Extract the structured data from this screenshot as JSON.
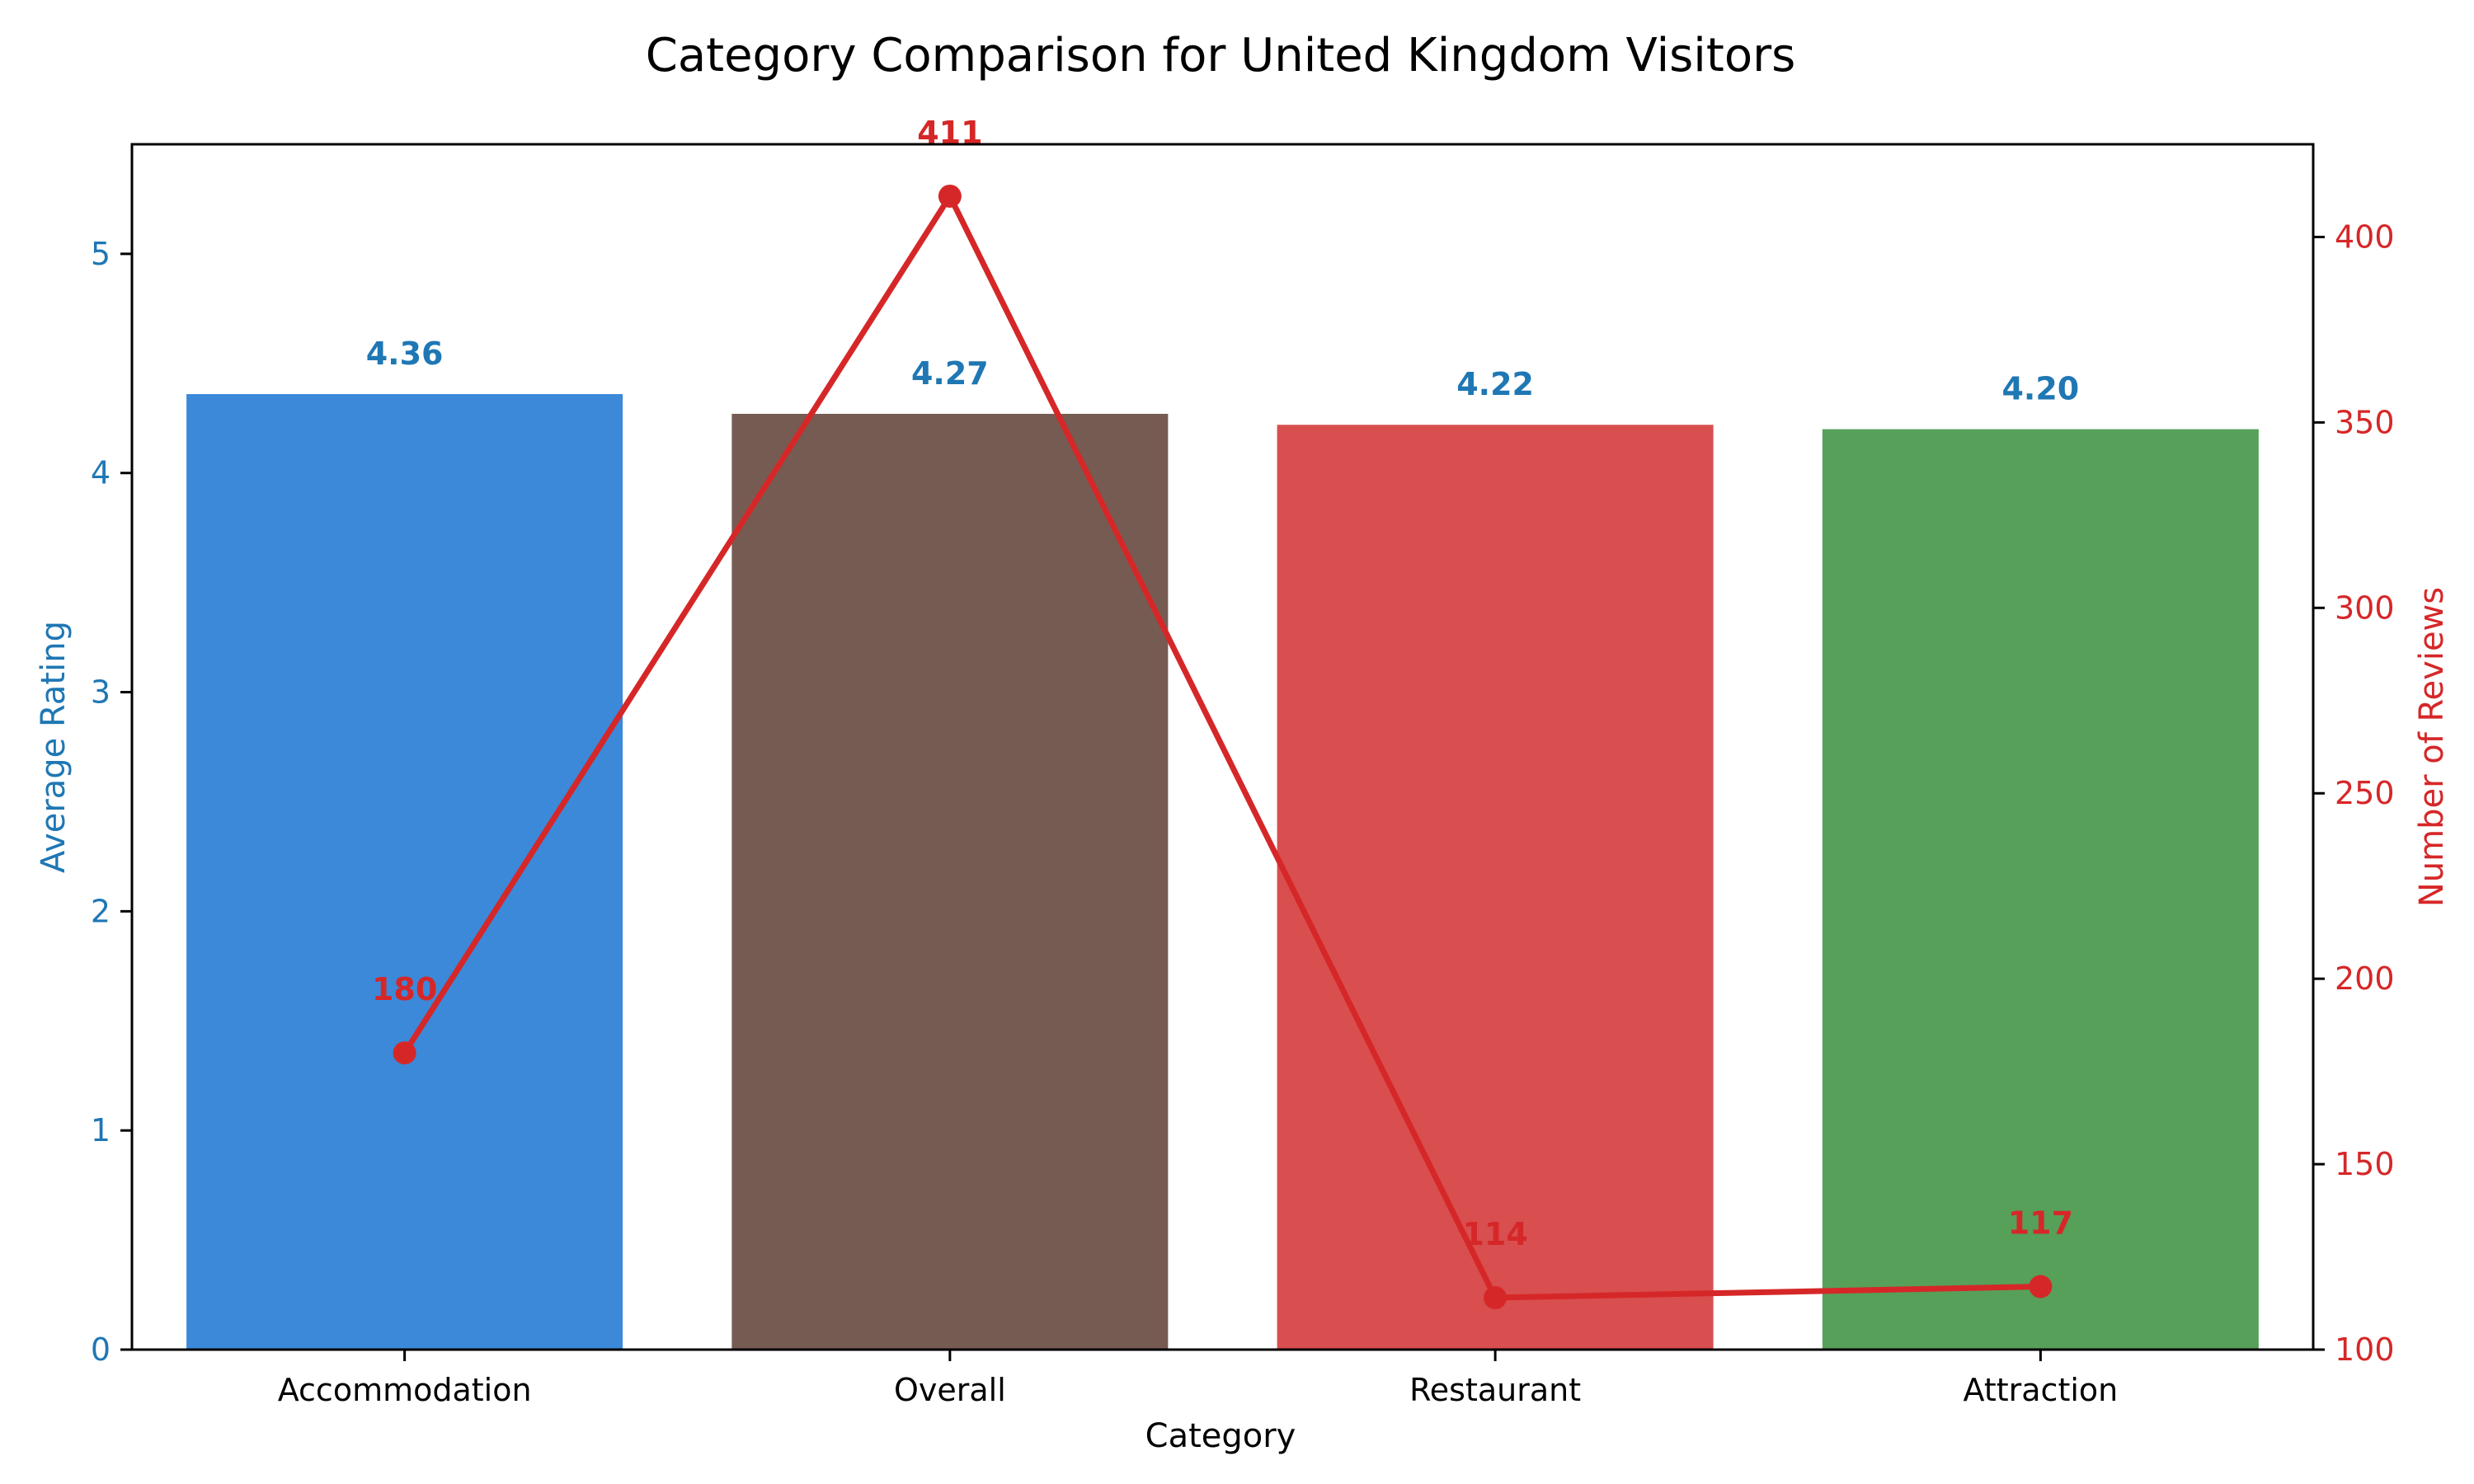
{
  "chart_data": {
    "type": "bar",
    "title": "Category Comparison for United Kingdom Visitors",
    "xlabel": "Category",
    "ylabel": "Average Rating",
    "y2label": "Number of Reviews",
    "categories": [
      "Accommodation",
      "Overall",
      "Restaurant",
      "Attraction"
    ],
    "series": [
      {
        "type": "bar",
        "axis": "left",
        "values": [
          4.36,
          4.27,
          4.22,
          4.2
        ],
        "labels": [
          "4.36",
          "4.27",
          "4.22",
          "4.20"
        ],
        "colors": [
          "#3b89d8",
          "#765b53",
          "#d94e4f",
          "#56a05a"
        ]
      },
      {
        "type": "line",
        "axis": "right",
        "values": [
          180,
          411,
          114,
          117
        ],
        "labels": [
          "180",
          "411",
          "114",
          "117"
        ],
        "color": "#d62728"
      }
    ],
    "ylim": [
      0,
      5.5
    ],
    "yticks": [
      "0",
      "1",
      "2",
      "3",
      "4",
      "5"
    ],
    "y2lim": [
      100,
      425
    ],
    "y2ticks": [
      "100",
      "150",
      "200",
      "250",
      "300",
      "350",
      "400"
    ],
    "left_axis_color": "#1f77b4",
    "right_axis_color": "#d62728",
    "grid": false,
    "legend": "none"
  }
}
